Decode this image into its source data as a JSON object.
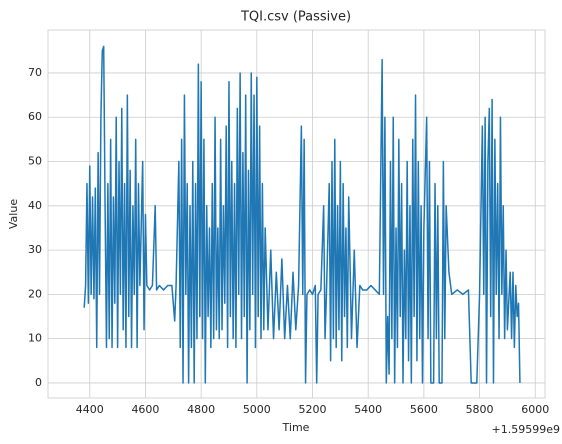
{
  "chart_data": {
    "type": "line",
    "title": "TQI.csv (Passive)",
    "x_label": "Time",
    "y_label": "Value",
    "x_offset_label": "+1.59599e9",
    "color": "#1f77b4",
    "grid": true,
    "xlim": [
      4250,
      6035
    ],
    "ylim": [
      -3.4,
      79.7
    ],
    "xticks": [
      4400,
      4600,
      4800,
      5000,
      5200,
      5400,
      5600,
      5800,
      6000
    ],
    "yticks": [
      0,
      10,
      20,
      30,
      40,
      50,
      60,
      70
    ],
    "x": [
      4380,
      4385,
      4390,
      4395,
      4400,
      4405,
      4410,
      4415,
      4420,
      4425,
      4430,
      4435,
      4440,
      4445,
      4450,
      4455,
      4460,
      4465,
      4470,
      4475,
      4480,
      4485,
      4490,
      4495,
      4500,
      4505,
      4510,
      4515,
      4520,
      4525,
      4530,
      4535,
      4540,
      4545,
      4550,
      4555,
      4560,
      4565,
      4570,
      4575,
      4580,
      4590,
      4595,
      4600,
      4605,
      4615,
      4625,
      4635,
      4640,
      4650,
      4665,
      4680,
      4695,
      4705,
      4710,
      4720,
      4725,
      4730,
      4735,
      4740,
      4745,
      4750,
      4755,
      4760,
      4765,
      4770,
      4775,
      4780,
      4785,
      4790,
      4795,
      4800,
      4805,
      4810,
      4815,
      4820,
      4825,
      4830,
      4835,
      4840,
      4845,
      4850,
      4855,
      4860,
      4865,
      4870,
      4875,
      4880,
      4885,
      4890,
      4895,
      4900,
      4905,
      4910,
      4915,
      4920,
      4925,
      4930,
      4935,
      4940,
      4945,
      4950,
      4955,
      4960,
      4965,
      4970,
      4975,
      4980,
      4985,
      4990,
      4995,
      5000,
      5005,
      5010,
      5015,
      5020,
      5025,
      5030,
      5040,
      5050,
      5060,
      5070,
      5080,
      5090,
      5100,
      5110,
      5120,
      5130,
      5140,
      5150,
      5160,
      5165,
      5170,
      5175,
      5180,
      5190,
      5200,
      5210,
      5215,
      5220,
      5230,
      5240,
      5245,
      5250,
      5260,
      5265,
      5270,
      5275,
      5280,
      5285,
      5290,
      5295,
      5300,
      5305,
      5310,
      5315,
      5320,
      5325,
      5330,
      5340,
      5350,
      5360,
      5370,
      5380,
      5395,
      5410,
      5425,
      5440,
      5450,
      5455,
      5460,
      5465,
      5470,
      5475,
      5480,
      5485,
      5490,
      5495,
      5500,
      5505,
      5510,
      5515,
      5520,
      5525,
      5530,
      5535,
      5540,
      5545,
      5550,
      5555,
      5560,
      5565,
      5570,
      5575,
      5580,
      5585,
      5590,
      5595,
      5600,
      5610,
      5615,
      5620,
      5625,
      5635,
      5640,
      5645,
      5650,
      5655,
      5665,
      5670,
      5675,
      5680,
      5690,
      5700,
      5720,
      5740,
      5760,
      5770,
      5790,
      5800,
      5810,
      5815,
      5820,
      5825,
      5830,
      5835,
      5840,
      5845,
      5850,
      5855,
      5860,
      5865,
      5870,
      5875,
      5880,
      5885,
      5890,
      5895,
      5900,
      5910,
      5915,
      5920,
      5925,
      5930,
      5935,
      5940,
      5945
    ],
    "values": [
      17,
      22,
      45,
      18,
      49,
      20,
      42,
      19,
      44,
      8,
      52,
      20,
      60,
      75,
      76,
      40,
      8,
      45,
      10,
      55,
      8,
      42,
      18,
      60,
      8,
      50,
      20,
      62,
      12,
      45,
      8,
      65,
      15,
      48,
      8,
      40,
      20,
      55,
      8,
      45,
      22,
      50,
      12,
      38,
      22,
      21,
      22,
      40,
      21,
      22,
      21,
      22,
      22,
      14,
      22,
      50,
      8,
      55,
      0,
      65,
      20,
      45,
      0,
      40,
      8,
      50,
      0,
      45,
      10,
      72,
      15,
      68,
      10,
      55,
      0,
      40,
      15,
      35,
      8,
      45,
      10,
      60,
      12,
      35,
      10,
      55,
      12,
      40,
      18,
      58,
      8,
      68,
      15,
      50,
      10,
      45,
      8,
      62,
      20,
      70,
      10,
      52,
      15,
      65,
      0,
      48,
      12,
      70,
      20,
      65,
      8,
      69,
      15,
      58,
      10,
      45,
      12,
      35,
      12,
      30,
      10,
      25,
      12,
      28,
      10,
      22,
      10,
      25,
      12,
      22,
      58,
      20,
      55,
      0,
      20,
      21,
      20,
      22,
      0,
      20,
      21,
      40,
      10,
      20,
      45,
      5,
      50,
      10,
      55,
      8,
      40,
      12,
      50,
      5,
      45,
      15,
      35,
      8,
      42,
      10,
      30,
      8,
      22,
      21,
      21,
      22,
      21,
      20,
      73,
      20,
      60,
      0,
      15,
      2,
      50,
      10,
      60,
      0,
      35,
      8,
      55,
      15,
      45,
      0,
      30,
      10,
      50,
      5,
      40,
      0,
      55,
      15,
      65,
      5,
      50,
      10,
      40,
      0,
      35,
      60,
      10,
      50,
      0,
      0,
      45,
      10,
      40,
      0,
      0,
      50,
      10,
      40,
      25,
      20,
      21,
      20,
      21,
      0,
      0,
      20,
      58,
      20,
      60,
      0,
      50,
      62,
      15,
      64,
      0,
      55,
      20,
      45,
      10,
      60,
      20,
      40,
      10,
      30,
      12,
      25,
      10,
      25,
      8,
      22,
      15,
      18,
      0
    ]
  }
}
